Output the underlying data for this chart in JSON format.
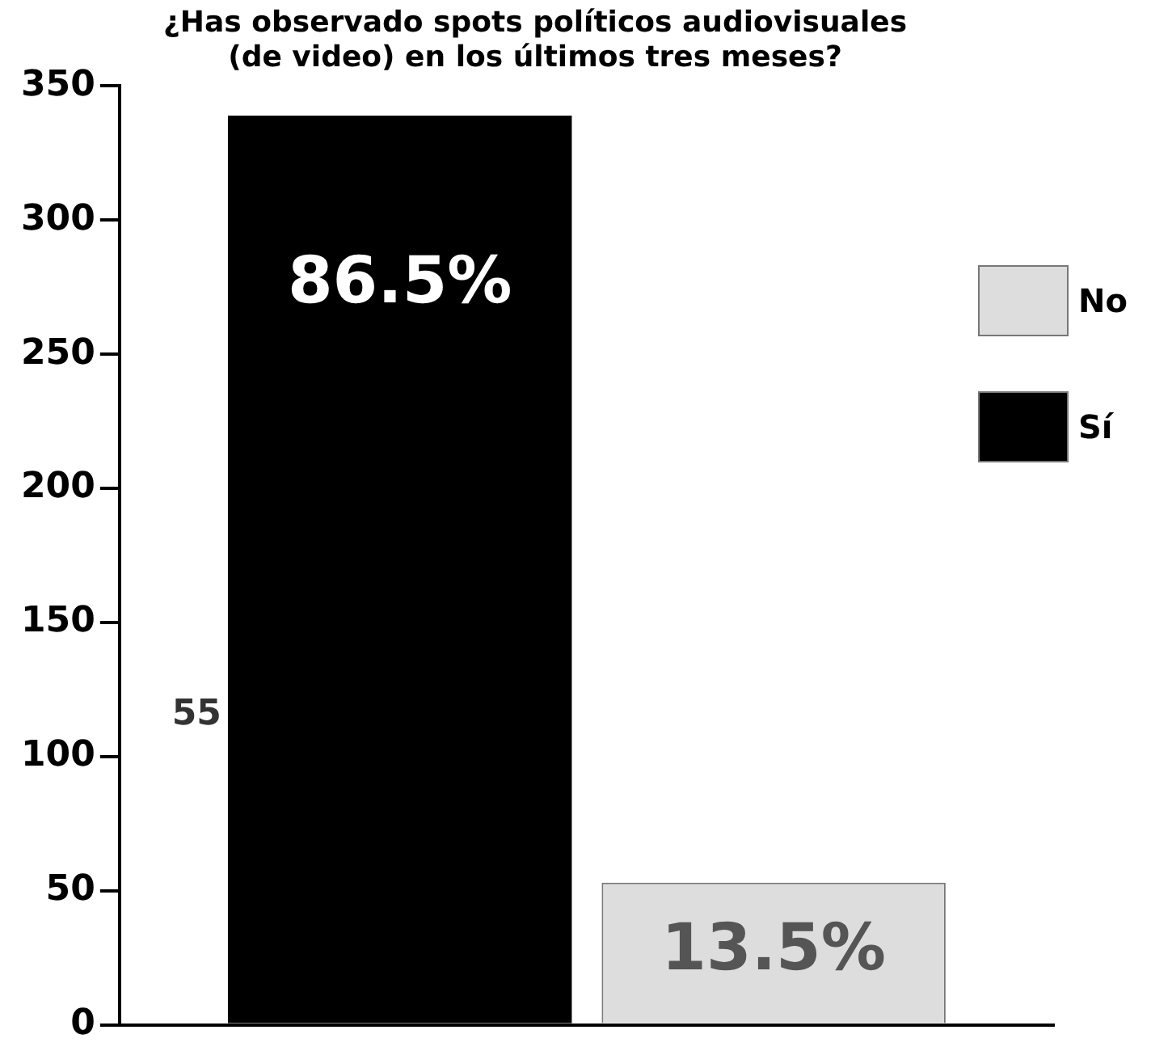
{
  "chart_data": {
    "type": "bar",
    "title": "¿Has observado spots políticos audiovisuales\n(de video) en los últimos tres meses?",
    "categories": [
      null
    ],
    "series": [
      {
        "name": "Sí",
        "color": "#000000",
        "values": [
          339
        ]
      },
      {
        "name": "No",
        "color": "#dddddd",
        "values": [
          53
        ]
      }
    ],
    "ylim": [
      0,
      350
    ],
    "yticks": [
      0,
      50,
      100,
      150,
      200,
      250,
      300,
      350
    ],
    "grid": false,
    "legend": "right",
    "annotations": [
      "86.5%",
      "13.5%",
      "55"
    ]
  }
}
